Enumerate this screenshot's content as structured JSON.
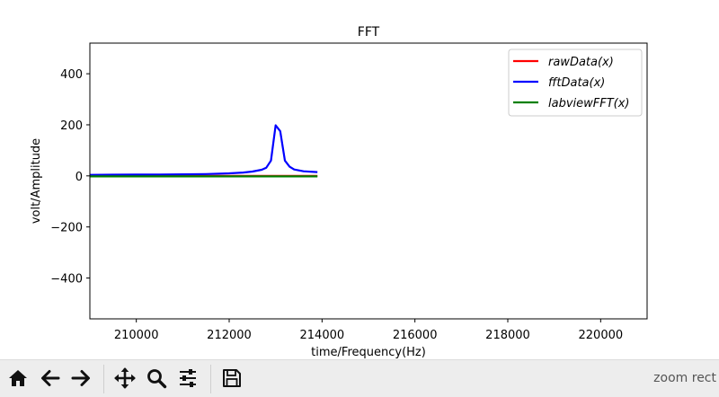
{
  "window": {
    "status_text": "zoom rect"
  },
  "toolbar": {
    "buttons": [
      {
        "name": "home",
        "icon": "home-icon"
      },
      {
        "name": "back",
        "icon": "arrow-left-icon"
      },
      {
        "name": "forward",
        "icon": "arrow-right-icon"
      },
      {
        "name": "pan",
        "icon": "move-icon"
      },
      {
        "name": "zoom",
        "icon": "search-icon"
      },
      {
        "name": "configure",
        "icon": "sliders-icon"
      },
      {
        "name": "save",
        "icon": "save-icon"
      }
    ]
  },
  "chart_data": {
    "type": "line",
    "title": "FFT",
    "xlabel": "time/Frequency(Hz)",
    "ylabel": "volt/Amplitude",
    "xlim": [
      209000,
      221000
    ],
    "ylim": [
      -560,
      520
    ],
    "xticks": [
      210000,
      212000,
      214000,
      216000,
      218000,
      220000
    ],
    "xtick_labels": [
      "210000",
      "212000",
      "214000",
      "216000",
      "218000",
      "220000"
    ],
    "yticks": [
      400,
      200,
      0,
      -200,
      -400
    ],
    "ytick_labels": [
      "400",
      "200",
      "0",
      "−200",
      "−400"
    ],
    "grid": false,
    "legend_position": "top-right",
    "series": [
      {
        "name": "rawData(x)",
        "color": "#ff0000",
        "x": [
          209000,
          213900
        ],
        "y": [
          0,
          0
        ]
      },
      {
        "name": "fftData(x)",
        "color": "#0000ff",
        "x": [
          209000,
          209500,
          210000,
          210500,
          211000,
          211500,
          212000,
          212300,
          212500,
          212700,
          212800,
          212900,
          213000,
          213100,
          213200,
          213300,
          213400,
          213600,
          213900
        ],
        "y": [
          4,
          4.5,
          5,
          5.5,
          6,
          7,
          10,
          13,
          17,
          24,
          32,
          60,
          198,
          175,
          60,
          36,
          25,
          18,
          15
        ]
      },
      {
        "name": "labviewFFT(x)",
        "color": "#008000",
        "x": [
          209000,
          213900
        ],
        "y": [
          -2,
          -2
        ]
      }
    ]
  }
}
